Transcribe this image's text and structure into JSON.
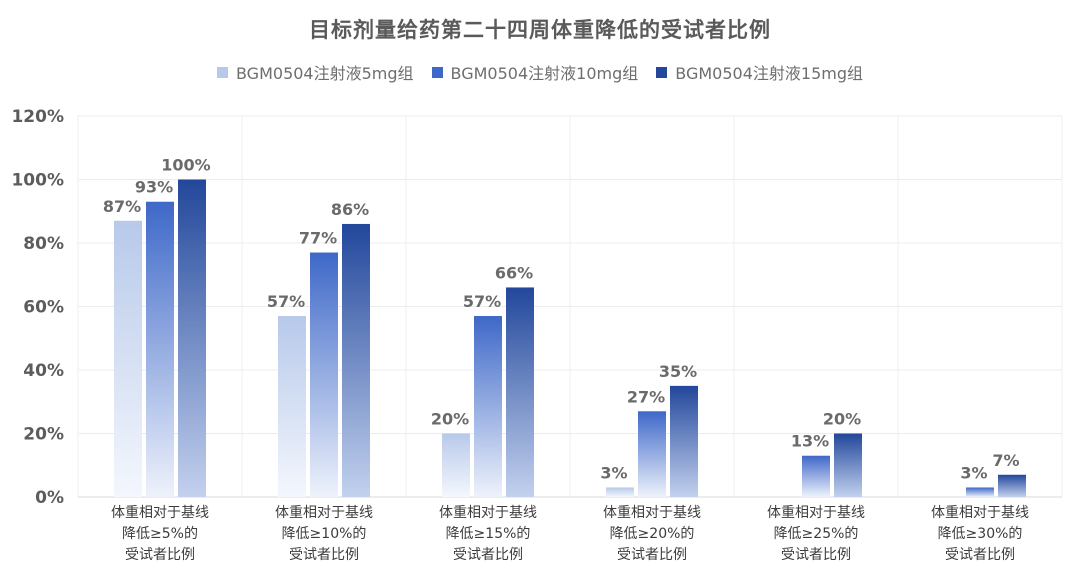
{
  "chart_data": {
    "type": "bar",
    "title": "目标剂量给药第二十四周体重降低的受试者比例",
    "categories": [
      [
        "体重相对于基线",
        "降低≥5%的",
        "受试者比例"
      ],
      [
        "体重相对于基线",
        "降低≥10%的",
        "受试者比例"
      ],
      [
        "体重相对于基线",
        "降低≥15%的",
        "受试者比例"
      ],
      [
        "体重相对于基线",
        "降低≥20%的",
        "受试者比例"
      ],
      [
        "体重相对于基线",
        "降低≥25%的",
        "受试者比例"
      ],
      [
        "体重相对于基线",
        "降低≥30%的",
        "受试者比例"
      ]
    ],
    "series": [
      {
        "name": "BGM0504注射液5mg组",
        "values": [
          87,
          57,
          20,
          3,
          null,
          null
        ],
        "labels": [
          "87%",
          "57%",
          "20%",
          "3%",
          "",
          ""
        ],
        "color_top": "#b7c9ea",
        "color_bottom": "#f4f7fd"
      },
      {
        "name": "BGM0504注射液10mg组",
        "values": [
          93,
          77,
          57,
          27,
          13,
          3
        ],
        "labels": [
          "93%",
          "77%",
          "57%",
          "27%",
          "13%",
          "3%"
        ],
        "color_top": "#3e68c8",
        "color_bottom": "#eef2fb"
      },
      {
        "name": "BGM0504注射液15mg组",
        "values": [
          100,
          86,
          66,
          35,
          20,
          7
        ],
        "labels": [
          "100%",
          "86%",
          "66%",
          "35%",
          "20%",
          "7%"
        ],
        "color_top": "#22479b",
        "color_bottom": "#c3d1ee"
      }
    ],
    "yticks": [
      "0%",
      "20%",
      "40%",
      "60%",
      "80%",
      "100%",
      "120%"
    ],
    "ylim": [
      0,
      120
    ],
    "grid": true,
    "legend_position": "top"
  }
}
